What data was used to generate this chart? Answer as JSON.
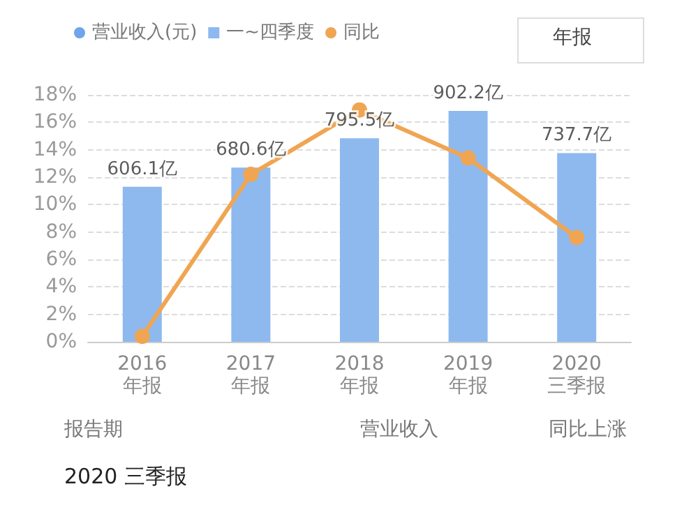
{
  "chart_data": {
    "type": "bar",
    "categories": [
      "2016\n年报",
      "2017\n年报",
      "2018\n年报",
      "2019\n年报",
      "2020\n三季报"
    ],
    "series": [
      {
        "name": "营业收入(元)",
        "type": "scatter",
        "color": "#4a8fe6",
        "values": [
          null,
          null,
          null,
          null,
          null
        ]
      },
      {
        "name": "一~四季度",
        "axis": "y2",
        "color": "#8db9ef",
        "values": [
          606.1,
          680.6,
          795.5,
          902.2,
          737.7
        ],
        "value_labels": [
          "606.1亿",
          "680.6亿",
          "795.5亿",
          "902.2亿",
          "737.7亿"
        ]
      },
      {
        "name": "同比",
        "type": "line",
        "color": "#f0a552",
        "values": [
          0.4,
          12.2,
          16.9,
          13.4,
          7.6
        ]
      }
    ],
    "ylim": [
      0,
      18
    ],
    "yticks": [
      {
        "value": 0,
        "label": "0%"
      },
      {
        "value": 2,
        "label": "2%"
      },
      {
        "value": 4,
        "label": "4%"
      },
      {
        "value": 6,
        "label": "6%"
      },
      {
        "value": 8,
        "label": "8%"
      },
      {
        "value": 10,
        "label": "10%"
      },
      {
        "value": 12,
        "label": "12%"
      },
      {
        "value": 14,
        "label": "14%"
      },
      {
        "value": 16,
        "label": "16%"
      },
      {
        "value": 18,
        "label": "18%"
      }
    ],
    "y2lim": [
      0,
      965
    ],
    "grid": "y",
    "legend": "top left",
    "marker": "circle",
    "annotations": [
      "年报",
      "报告期",
      "营业收入",
      "同比上涨",
      "2020 三季报"
    ]
  }
}
